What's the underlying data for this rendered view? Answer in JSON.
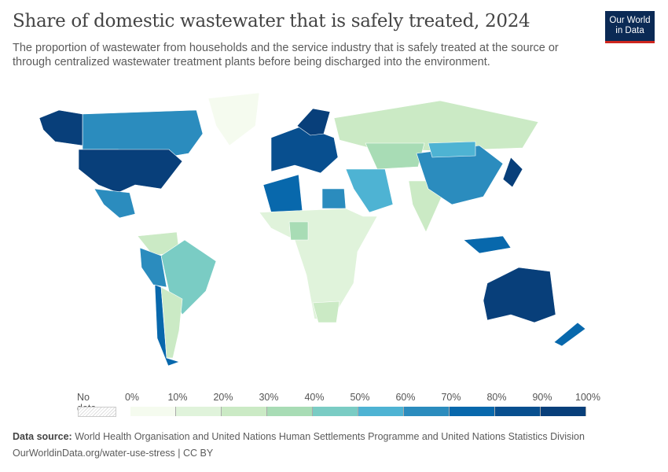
{
  "header": {
    "title": "Share of domestic wastewater that is safely treated, 2024",
    "subtitle": "The proportion of wastewater from households and the service industry that is safely treated at the source or through centralized wastewater treatment plants before being discharged into the environment.",
    "logo": "Our World in Data"
  },
  "colors": {
    "no_data": "hatched",
    "bins": [
      "#f5fbef",
      "#e0f3db",
      "#cbeac5",
      "#a8dcb5",
      "#7accc4",
      "#4eb3d3",
      "#2b8cbe",
      "#0868ac",
      "#084f8f",
      "#083f7a"
    ],
    "logo_bg": "#0b2a55",
    "logo_accent": "#ce261e"
  },
  "legend": {
    "no_data_label": "No data",
    "ticks": [
      "0%",
      "10%",
      "20%",
      "30%",
      "40%",
      "50%",
      "60%",
      "70%",
      "80%",
      "90%",
      "100%"
    ]
  },
  "chart_data": {
    "type": "choropleth",
    "unit": "%",
    "bins": [
      0,
      10,
      20,
      30,
      40,
      50,
      60,
      70,
      80,
      90,
      100
    ],
    "regions": [
      {
        "name": "Canada",
        "bin": 6
      },
      {
        "name": "Alaska (United States)",
        "bin": 9
      },
      {
        "name": "Greenland",
        "bin": 0
      },
      {
        "name": "United States",
        "bin": 9
      },
      {
        "name": "Mexico",
        "bin": 6
      },
      {
        "name": "Colombia/Venezuela",
        "bin": 2
      },
      {
        "name": "Brazil",
        "bin": 4
      },
      {
        "name": "Peru",
        "bin": 6
      },
      {
        "name": "Chile",
        "bin": 7
      },
      {
        "name": "Argentina",
        "bin": 2
      },
      {
        "name": "Western Europe",
        "bin": 8
      },
      {
        "name": "Scandinavia",
        "bin": 9
      },
      {
        "name": "Russia",
        "bin": 2
      },
      {
        "name": "Kazakhstan",
        "bin": 3
      },
      {
        "name": "Middle East",
        "bin": 5
      },
      {
        "name": "Algeria",
        "bin": 7
      },
      {
        "name": "Egypt",
        "bin": 6
      },
      {
        "name": "Sub-Saharan Africa",
        "bin": 1
      },
      {
        "name": "Nigeria",
        "bin": 3
      },
      {
        "name": "South Africa",
        "bin": 2
      },
      {
        "name": "India",
        "bin": 2
      },
      {
        "name": "China",
        "bin": 6
      },
      {
        "name": "Mongolia",
        "bin": 5
      },
      {
        "name": "Japan",
        "bin": 9
      },
      {
        "name": "Indonesia/Malaysia",
        "bin": 7
      },
      {
        "name": "Australia",
        "bin": 9
      },
      {
        "name": "New Zealand",
        "bin": 7
      }
    ]
  },
  "footer": {
    "source_label": "Data source:",
    "source": "World Health Organisation and United Nations Human Settlements Programme and United Nations Statistics Division",
    "link": "OurWorldinData.org/water-use-stress | CC BY"
  }
}
